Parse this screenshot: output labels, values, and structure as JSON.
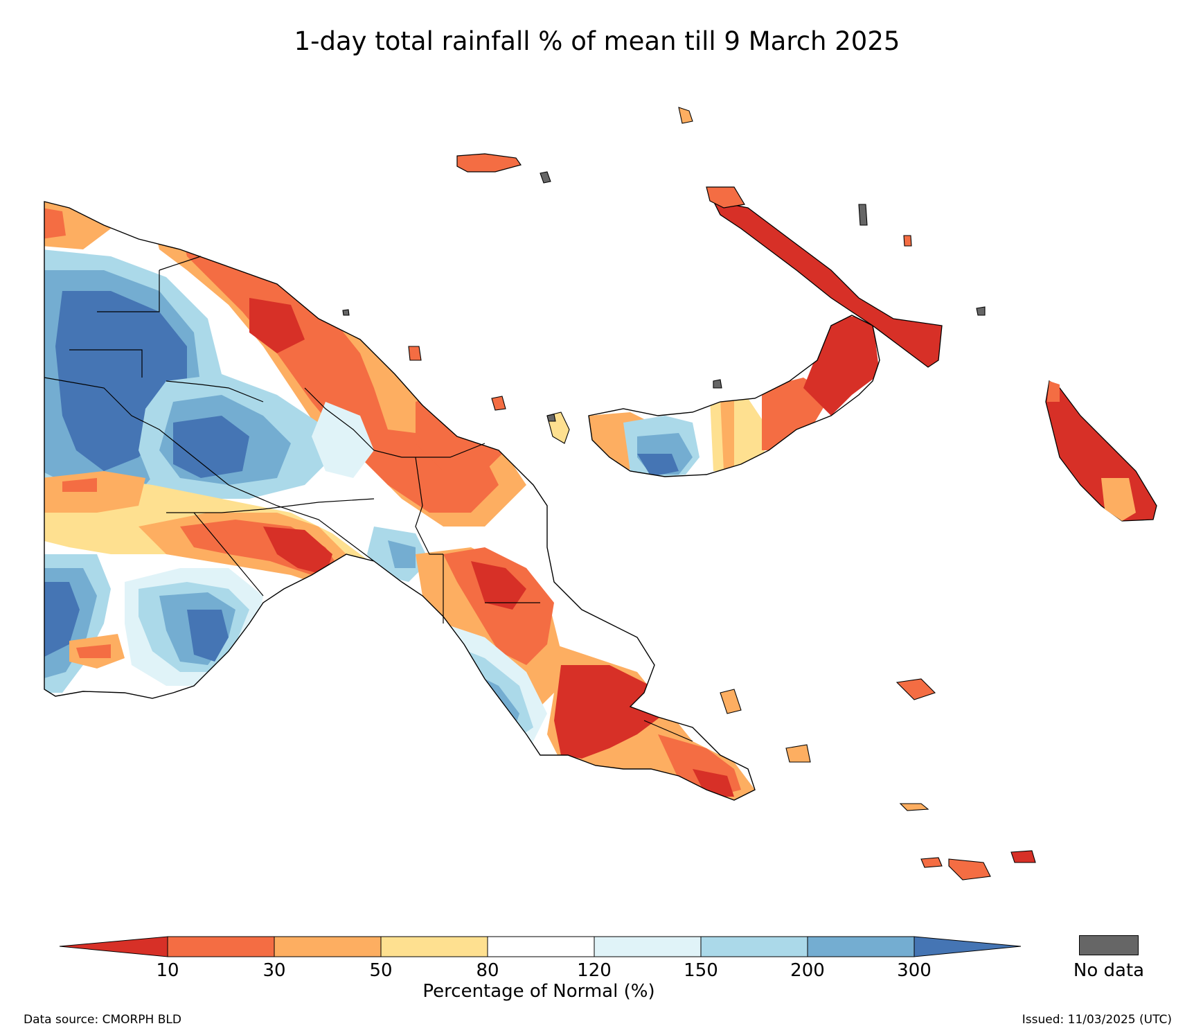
{
  "title": "1-day total rainfall % of mean till 9 March 2025",
  "colorbar": {
    "title": "Percentage of Normal (%)",
    "ticks": [
      "10",
      "30",
      "50",
      "80",
      "120",
      "150",
      "200",
      "300"
    ],
    "classes": [
      {
        "range": "<10",
        "color": "#d73027"
      },
      {
        "range": "10-30",
        "color": "#f46d43"
      },
      {
        "range": "30-50",
        "color": "#fdae61"
      },
      {
        "range": "50-80",
        "color": "#fee090"
      },
      {
        "range": "80-120",
        "color": "#ffffff"
      },
      {
        "range": "120-150",
        "color": "#e0f3f8"
      },
      {
        "range": "150-200",
        "color": "#abd9e9"
      },
      {
        "range": "200-300",
        "color": "#74add1"
      },
      {
        "range": ">300",
        "color": "#4575b4"
      }
    ]
  },
  "no_data": {
    "label": "No data",
    "color": "#666666"
  },
  "footer": {
    "source": "Data source: CMORPH BLD",
    "issued": "Issued: 11/03/2025 (UTC)"
  }
}
